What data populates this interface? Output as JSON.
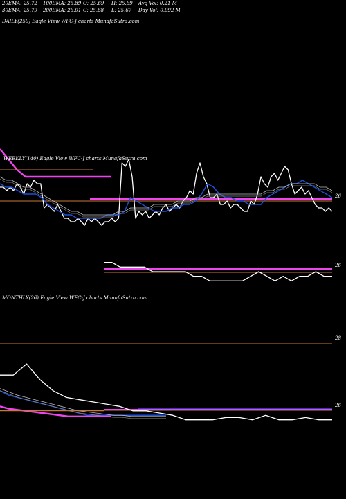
{
  "header": {
    "row1": [
      {
        "label": "20EMA: 25.72"
      },
      {
        "label": "100EMA: 25.89"
      },
      {
        "label": "O: 25.69"
      },
      {
        "label": "H: 25.69"
      },
      {
        "label": "Avg Vol: 0.21  M"
      }
    ],
    "row2": [
      {
        "label": "30EMA: 25.79"
      },
      {
        "label": "200EMA: 26.01"
      },
      {
        "label": "C: 25.68"
      },
      {
        "label": "L: 25.67"
      },
      {
        "label": "Day Vol: 0.092  M"
      }
    ]
  },
  "panels": {
    "daily_label": "DAILY(250) Eagle  View  WFC-J charts MunafaSutra.com",
    "weekly_label": "WEEKLY(140) Eagle  View  WFC-J charts MunafaSutra.com",
    "monthly_label": "MONTHLY(26) Eagle  View  WFC-J charts MunafaSutra.com"
  },
  "colors": {
    "background": "#000000",
    "price": "#ffffff",
    "ema_blue": "#1f4fd8",
    "ema_pink": "#ee44ee",
    "ref_orange": "#c87832",
    "ema_grey": "#bbbbbb"
  },
  "chart_data": [
    {
      "type": "line",
      "name": "weekly",
      "y_ticks": [
        {
          "label": "26",
          "value": 26.0
        },
        {
          "label": "26",
          "value": 25.8
        }
      ],
      "ylim": [
        25.72,
        26.06
      ],
      "series": [
        {
          "role": "price",
          "values": [
            25.95,
            25.95,
            25.94,
            25.95,
            25.94,
            25.96,
            25.95,
            25.93,
            25.96,
            25.95,
            25.97,
            25.96,
            25.96,
            25.89,
            25.9,
            25.89,
            25.88,
            25.9,
            25.88,
            25.86,
            25.86,
            25.85,
            25.85,
            25.86,
            25.85,
            25.84,
            25.86,
            25.85,
            25.86,
            25.85,
            25.84,
            25.85,
            25.85,
            25.86,
            25.85,
            25.86,
            26.02,
            26.01,
            26.03,
            25.98,
            25.86,
            25.88,
            25.87,
            25.88,
            25.86,
            25.87,
            25.88,
            25.87,
            25.89,
            25.9,
            25.88,
            25.89,
            25.9,
            25.89,
            25.91,
            25.92,
            25.94,
            25.93,
            25.99,
            26.02,
            25.98,
            25.96,
            25.92,
            25.92,
            25.93,
            25.9,
            25.9,
            25.91,
            25.89,
            25.9,
            25.9,
            25.89,
            25.88,
            25.88,
            25.91,
            25.9,
            25.93,
            25.98,
            25.96,
            25.95,
            25.98,
            25.99,
            25.97,
            25.99,
            26.01,
            26.0,
            25.96,
            25.93,
            25.94,
            25.95,
            25.93,
            25.94,
            25.92,
            25.9,
            25.89,
            25.89,
            25.88,
            25.89,
            25.88
          ]
        },
        {
          "role": "ema_blue",
          "values": [
            25.96,
            25.95,
            25.95,
            25.94,
            25.93,
            25.93,
            25.93,
            25.92,
            25.9,
            25.89,
            25.88,
            25.87,
            25.87,
            25.86,
            25.86,
            25.86,
            25.86,
            25.86,
            25.87,
            25.87,
            25.87,
            25.88,
            25.92,
            25.91,
            25.9,
            25.89,
            25.88,
            25.88,
            25.88,
            25.89,
            25.89,
            25.9,
            25.9,
            25.91,
            25.93,
            25.96,
            25.95,
            25.93,
            25.92,
            25.92,
            25.91,
            25.91,
            25.9,
            25.9,
            25.9,
            25.92,
            25.93,
            25.94,
            25.95,
            25.96,
            25.96,
            25.97,
            25.96,
            25.95,
            25.94,
            25.93,
            25.92
          ]
        },
        {
          "role": "ema_grey",
          "values": [
            25.98,
            25.97,
            25.97,
            25.96,
            25.95,
            25.95,
            25.94,
            25.93,
            25.92,
            25.91,
            25.9,
            25.89,
            25.88,
            25.88,
            25.87,
            25.87,
            25.87,
            25.87,
            25.87,
            25.87,
            25.88,
            25.88,
            25.89,
            25.89,
            25.89,
            25.89,
            25.9,
            25.9,
            25.9,
            25.9,
            25.91,
            25.91,
            25.91,
            25.92,
            25.92,
            25.93,
            25.93,
            25.93,
            25.93,
            25.93,
            25.93,
            25.93,
            25.93,
            25.93,
            25.93,
            25.94,
            25.94,
            25.95,
            25.95,
            25.96,
            25.96,
            25.96,
            25.96,
            25.96,
            25.95,
            25.95,
            25.94
          ]
        },
        {
          "role": "ema_pink",
          "values": [
            26.06,
            26.03,
            26.0,
            25.98,
            25.98,
            25.98,
            25.98,
            25.98,
            25.98,
            25.98,
            25.98,
            25.98,
            25.98,
            25.98
          ]
        },
        {
          "role": "ema_orange",
          "values": [
            26.0,
            26.0,
            26.0,
            26.0,
            26.0,
            26.0
          ]
        }
      ]
    },
    {
      "type": "line",
      "name": "weekly-lower",
      "ylim": [
        25.78,
        25.84
      ],
      "series": [
        {
          "role": "price",
          "values": [
            25.83,
            25.83,
            25.82,
            25.82,
            25.82,
            25.82,
            25.81,
            25.81,
            25.81,
            25.81,
            25.81,
            25.8,
            25.8,
            25.79,
            25.79,
            25.79,
            25.79,
            25.79,
            25.8,
            25.81,
            25.8,
            25.79,
            25.8,
            25.79,
            25.8,
            25.8,
            25.81,
            25.8,
            25.8
          ]
        }
      ]
    },
    {
      "type": "line",
      "name": "monthly",
      "y_ticks": [
        {
          "label": "28",
          "value": 28.0
        },
        {
          "label": "26",
          "value": 26.0
        }
      ],
      "ylim": [
        25.0,
        29.5
      ],
      "series": [
        {
          "role": "price",
          "values": [
            27.6,
            27.6,
            28.1,
            27.4,
            26.9,
            26.6,
            26.5,
            26.4,
            26.3,
            26.2,
            26.0,
            26.0,
            25.9,
            25.8,
            25.6,
            25.6,
            25.6,
            25.7,
            25.7,
            25.6,
            25.8,
            25.6,
            25.6,
            25.7,
            25.6,
            25.6
          ]
        },
        {
          "role": "ema_blue",
          "values": [
            26.9,
            26.7,
            26.6,
            26.5,
            26.4,
            26.3,
            26.2,
            26.1,
            26.0,
            25.9,
            25.8,
            25.8,
            25.8,
            25.8,
            25.8,
            25.8,
            25.8,
            25.8,
            25.8,
            25.8
          ]
        },
        {
          "role": "ema_grey",
          "values": [
            27.0,
            26.85,
            26.7,
            26.6,
            26.5,
            26.4,
            26.3,
            26.2,
            26.1,
            26.0,
            25.95,
            25.9,
            25.85,
            25.8,
            25.8,
            25.75,
            25.75,
            25.75,
            25.75,
            25.75
          ]
        },
        {
          "role": "ema_pink",
          "values": [
            26.2,
            26.1,
            26.05,
            26.0,
            25.95,
            25.9,
            25.85,
            25.8,
            25.75,
            25.75,
            25.75,
            25.75,
            25.75,
            25.75
          ]
        },
        {
          "role": "ema_orange",
          "values": [
            26.0,
            26.0,
            26.0,
            26.0
          ]
        }
      ]
    }
  ]
}
